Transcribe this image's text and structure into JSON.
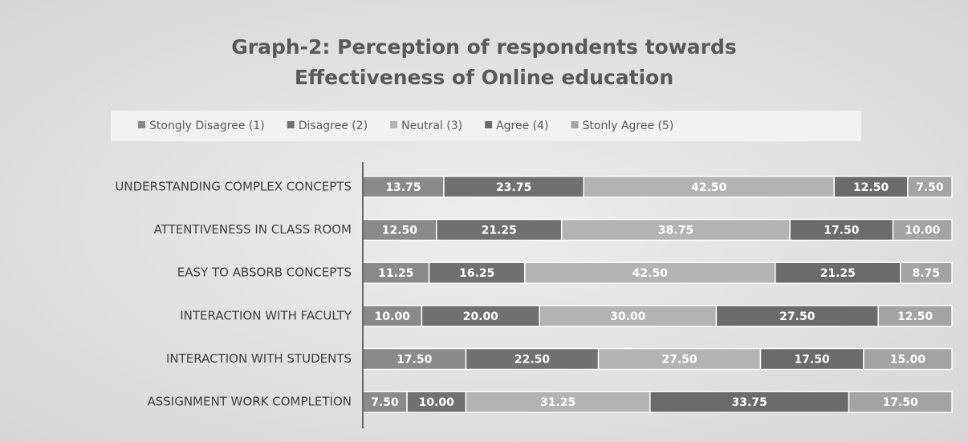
{
  "chart_data": {
    "type": "stacked_bar_horizontal",
    "title": "Graph-2: Perception of respondents towards Effectiveness of Online education",
    "categories": [
      "UNDERSTANDING COMPLEX CONCEPTS",
      "ATTENTIVENESS IN CLASS ROOM",
      "EASY TO ABSORB CONCEPTS",
      "INTERACTION WITH FACULTY",
      "INTERACTION WITH STUDENTS",
      "ASSIGNMENT WORK COMPLETION"
    ],
    "xlim": [
      0,
      100
    ],
    "legend": "top",
    "series": [
      {
        "name": "Stongly Disagree (1)",
        "color": "#8a8a8a",
        "values": [
          13.75,
          12.5,
          11.25,
          10,
          17.5,
          7.5
        ],
        "value_labels": [
          "13.75",
          "12.50",
          "11.25",
          "10.00",
          "17.50",
          "7.50"
        ]
      },
      {
        "name": "Disagree (2)",
        "color": "#707070",
        "values": [
          23.75,
          21.25,
          16.25,
          20,
          22.5,
          10
        ],
        "value_labels": [
          "23.75",
          "21.25",
          "16.25",
          "20.00",
          "22.50",
          "10.00"
        ]
      },
      {
        "name": "Neutral (3)",
        "color": "#b3b3b3",
        "values": [
          42.5,
          38.75,
          42.5,
          30,
          27.5,
          31.25
        ],
        "value_labels": [
          "42.50",
          "38.75",
          "42.50",
          "30.00",
          "27.50",
          "31.25"
        ]
      },
      {
        "name": "Agree (4)",
        "color": "#6b6b6b",
        "values": [
          12.5,
          17.5,
          21.25,
          27.5,
          17.5,
          33.75
        ],
        "value_labels": [
          "12.50",
          "17.50",
          "21.25",
          "27.50",
          "17.50",
          "33.75"
        ]
      },
      {
        "name": "Stonly Agree (5)",
        "color": "#a3a3a3",
        "values": [
          7.5,
          10,
          8.75,
          12.5,
          15,
          17.5
        ],
        "value_labels": [
          "7.50",
          "10.00",
          "8.75",
          "12.50",
          "15.00",
          "17.50"
        ]
      }
    ]
  }
}
